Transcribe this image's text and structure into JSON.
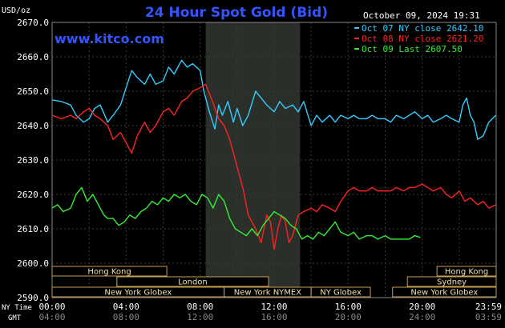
{
  "chart_data": {
    "type": "line",
    "title": "24 Hour Spot Gold (Bid)",
    "ylabel": "USD/oz",
    "datetime": "October 09, 2024 19:31",
    "watermark": "www.kitco.com",
    "ylim": [
      2590,
      2670
    ],
    "y_ticks": [
      "2670.0",
      "2660.0",
      "2650.0",
      "2640.0",
      "2630.0",
      "2620.0",
      "2610.0",
      "2600.0",
      "2590.0"
    ],
    "x_hours_ny": [
      0,
      24
    ],
    "x_ticks_ny": [
      "00:00",
      "04:00",
      "08:00",
      "12:00",
      "16:00",
      "20:00",
      "23:59"
    ],
    "x_ticks_gmt": [
      "04:00",
      "08:00",
      "12:00",
      "16:00",
      "20:00",
      "24:00",
      "03:59"
    ],
    "x_row_labels": [
      "NY Time",
      "GMT"
    ],
    "shaded_range_hours": [
      8.3,
      13.4
    ],
    "grid": true,
    "legend_position": "top-right",
    "series": [
      {
        "name": "Oct 07 NY close 2642.10",
        "color": "#33ccff",
        "x": [
          0,
          0.5,
          1,
          1.3,
          1.7,
          2,
          2.3,
          2.6,
          3,
          3.3,
          3.7,
          4,
          4.3,
          4.6,
          5,
          5.3,
          5.6,
          6,
          6.3,
          6.6,
          7,
          7.3,
          7.6,
          8,
          8.2,
          8.5,
          8.8,
          9,
          9.2,
          9.5,
          9.8,
          10,
          10.3,
          10.6,
          11,
          11.3,
          11.6,
          12,
          12.3,
          12.6,
          13,
          13.3,
          13.6,
          14,
          14.3,
          14.6,
          15,
          15.3,
          15.6,
          16,
          16.3,
          16.6,
          17,
          17.3,
          17.6,
          18,
          18.3,
          18.6,
          19,
          19.3,
          19.6,
          20,
          20.3,
          20.6,
          21,
          21.3,
          21.6,
          22,
          22.2,
          22.4,
          22.6,
          22.8,
          23,
          23.3,
          23.6,
          23.98
        ],
        "y": [
          2647.5,
          2647,
          2646,
          2643,
          2641,
          2642,
          2645,
          2646,
          2641,
          2643,
          2646,
          2651,
          2656,
          2654,
          2652,
          2655,
          2652,
          2653,
          2657,
          2655,
          2659,
          2657,
          2658,
          2656,
          2650,
          2644,
          2639,
          2646,
          2643,
          2647,
          2641,
          2645,
          2640,
          2643,
          2650,
          2648,
          2646,
          2644,
          2647,
          2645,
          2646,
          2644,
          2647,
          2640,
          2643,
          2641,
          2643,
          2641,
          2643,
          2642,
          2643,
          2642,
          2642,
          2643,
          2642,
          2642,
          2641,
          2643,
          2642,
          2643,
          2644,
          2642,
          2643,
          2641,
          2642,
          2643,
          2642,
          2641,
          2646,
          2648,
          2643,
          2641,
          2636,
          2637,
          2641,
          2643
        ]
      },
      {
        "name": "Oct 08 NY close 2621.20",
        "color": "#ff2222",
        "x": [
          0,
          0.5,
          1,
          1.3,
          1.7,
          2,
          2.3,
          2.6,
          3,
          3.3,
          3.7,
          4,
          4.3,
          4.6,
          5,
          5.3,
          5.6,
          6,
          6.3,
          6.6,
          7,
          7.3,
          7.6,
          8,
          8.3,
          8.6,
          9,
          9.3,
          9.6,
          10,
          10.3,
          10.6,
          11,
          11.3,
          11.6,
          11.8,
          12,
          12.2,
          12.4,
          12.6,
          12.8,
          13,
          13.3,
          13.6,
          14,
          14.3,
          14.6,
          15,
          15.3,
          15.6,
          16,
          16.3,
          16.6,
          17,
          17.3,
          17.6,
          18,
          18.3,
          18.6,
          19,
          19.3,
          19.6,
          20,
          20.3,
          20.6,
          21,
          21.3,
          21.6,
          22,
          22.3,
          22.6,
          23,
          23.3,
          23.6,
          23.98
        ],
        "y": [
          2643,
          2642,
          2643,
          2642,
          2644,
          2645,
          2643,
          2642,
          2640,
          2636,
          2638,
          2635,
          2632,
          2637,
          2641,
          2638,
          2640,
          2644,
          2645,
          2643,
          2647,
          2648,
          2650,
          2651,
          2652,
          2648,
          2642,
          2640,
          2636,
          2628,
          2622,
          2614,
          2610,
          2606,
          2614,
          2612,
          2604,
          2610,
          2614,
          2612,
          2606,
          2608,
          2614,
          2615,
          2616,
          2615,
          2617,
          2616,
          2615,
          2618,
          2621,
          2622,
          2621,
          2621,
          2622,
          2621,
          2621,
          2621,
          2622,
          2621,
          2622,
          2622,
          2623,
          2622,
          2621,
          2622,
          2620,
          2619,
          2621,
          2618,
          2619,
          2617,
          2618,
          2616,
          2617
        ]
      },
      {
        "name": "Oct 09 Last 2607.50",
        "color": "#33ee33",
        "x": [
          0,
          0.3,
          0.6,
          1,
          1.3,
          1.6,
          1.9,
          2.2,
          2.5,
          2.8,
          3,
          3.3,
          3.6,
          3.9,
          4.2,
          4.5,
          4.8,
          5.1,
          5.4,
          5.7,
          6,
          6.3,
          6.6,
          6.9,
          7.2,
          7.5,
          7.8,
          8.1,
          8.4,
          8.7,
          9,
          9.3,
          9.6,
          9.9,
          10.2,
          10.5,
          10.8,
          11.1,
          11.4,
          11.7,
          12,
          12.3,
          12.6,
          12.9,
          13.2,
          13.5,
          13.8,
          14.1,
          14.4,
          14.7,
          15,
          15.3,
          15.6,
          16,
          16.3,
          16.6,
          17,
          17.3,
          17.6,
          18,
          18.3,
          18.6,
          19,
          19.3,
          19.6,
          19.9
        ],
        "y": [
          2616,
          2617,
          2615,
          2616,
          2620,
          2622,
          2618,
          2620,
          2617,
          2614,
          2613,
          2613,
          2611,
          2612,
          2614,
          2613,
          2615,
          2616,
          2618,
          2617,
          2619,
          2618,
          2620,
          2619,
          2620,
          2618,
          2617,
          2620,
          2619,
          2616,
          2620,
          2618,
          2613,
          2610,
          2609,
          2608,
          2610,
          2608,
          2611,
          2613,
          2615,
          2614,
          2613,
          2611,
          2610,
          2607,
          2608,
          2607,
          2609,
          2608,
          2610,
          2612,
          2609,
          2608,
          2609,
          2607,
          2608,
          2608,
          2607,
          2608,
          2607,
          2607,
          2607,
          2607,
          2608,
          2607.5
        ]
      }
    ],
    "session_bars": [
      {
        "label": "Hong Kong",
        "row": 0,
        "start": 0,
        "end": 6.2
      },
      {
        "label": "London",
        "row": 1,
        "start": 3.5,
        "end": 11.7
      },
      {
        "label": "New York Globex",
        "row": 2,
        "start": 0,
        "end": 9.3
      },
      {
        "label": "New York NYMEX",
        "row": 2,
        "start": 9.3,
        "end": 14.0
      },
      {
        "label": "NY Globex",
        "row": 2,
        "start": 14.0,
        "end": 17.2
      },
      {
        "label": "Hong Kong",
        "row": 0,
        "start": 20.8,
        "end": 24
      },
      {
        "label": "Sydney",
        "row": 1,
        "start": 19.2,
        "end": 24
      },
      {
        "label": "New York Globex",
        "row": 2,
        "start": 18.4,
        "end": 24
      }
    ]
  }
}
